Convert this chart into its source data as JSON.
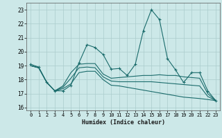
{
  "xlabel": "Humidex (Indice chaleur)",
  "bg_color": "#cce8e8",
  "grid_color": "#aacccc",
  "line_color": "#1a6b6b",
  "xlim": [
    -0.5,
    23.5
  ],
  "ylim": [
    15.8,
    23.5
  ],
  "yticks": [
    16,
    17,
    18,
    19,
    20,
    21,
    22,
    23
  ],
  "xticks": [
    0,
    1,
    2,
    3,
    4,
    5,
    6,
    7,
    8,
    9,
    10,
    11,
    12,
    13,
    14,
    15,
    16,
    17,
    18,
    19,
    20,
    21,
    22,
    23
  ],
  "series_main_x": [
    0,
    1,
    2,
    3,
    4,
    5,
    6,
    7,
    8,
    9,
    10,
    11,
    12,
    13,
    14,
    15,
    16,
    17,
    18,
    19,
    20,
    21,
    22,
    23
  ],
  "series_main_y": [
    19.1,
    18.9,
    17.8,
    17.2,
    17.2,
    17.6,
    19.2,
    20.5,
    20.3,
    19.8,
    18.75,
    18.8,
    18.3,
    19.1,
    21.5,
    23.0,
    22.3,
    19.5,
    18.7,
    17.8,
    18.5,
    18.5,
    17.2,
    16.5
  ],
  "series2_x": [
    0,
    1,
    2,
    3,
    4,
    5,
    6,
    7,
    8,
    9,
    10,
    11,
    12,
    13,
    14,
    15,
    16,
    17,
    18,
    19,
    20,
    21,
    22,
    23
  ],
  "series2_y": [
    19.0,
    18.85,
    17.8,
    17.2,
    17.55,
    18.5,
    19.1,
    19.15,
    19.15,
    18.4,
    18.1,
    18.15,
    18.2,
    18.25,
    18.3,
    18.3,
    18.35,
    18.3,
    18.3,
    18.2,
    18.15,
    18.1,
    17.0,
    16.5
  ],
  "series3_x": [
    0,
    1,
    2,
    3,
    4,
    5,
    6,
    7,
    8,
    9,
    10,
    11,
    12,
    13,
    14,
    15,
    16,
    17,
    18,
    19,
    20,
    21,
    22,
    23
  ],
  "series3_y": [
    19.0,
    18.85,
    17.8,
    17.2,
    17.45,
    18.1,
    18.85,
    18.9,
    18.85,
    18.2,
    17.9,
    17.85,
    17.85,
    17.85,
    17.85,
    17.85,
    17.8,
    17.75,
    17.7,
    17.65,
    17.6,
    17.55,
    16.8,
    16.5
  ],
  "series4_x": [
    0,
    1,
    2,
    3,
    4,
    5,
    6,
    7,
    8,
    9,
    10,
    11,
    12,
    13,
    14,
    15,
    16,
    17,
    18,
    19,
    20,
    21,
    22,
    23
  ],
  "series4_y": [
    19.0,
    18.85,
    17.8,
    17.2,
    17.35,
    17.7,
    18.5,
    18.6,
    18.6,
    18.0,
    17.6,
    17.55,
    17.45,
    17.35,
    17.25,
    17.15,
    17.05,
    16.95,
    16.85,
    16.75,
    16.7,
    16.65,
    16.58,
    16.5
  ]
}
